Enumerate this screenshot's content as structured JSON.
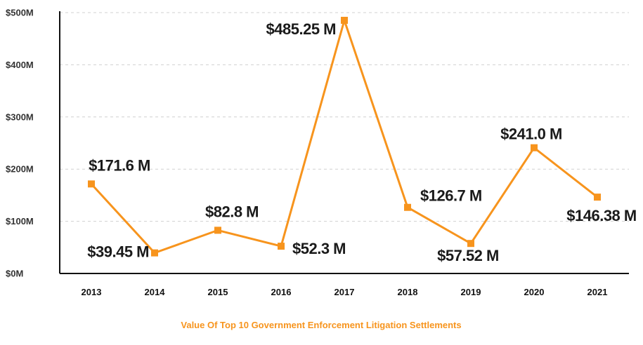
{
  "chart_data": {
    "type": "line",
    "title": "",
    "caption": "Value Of Top 10 Government Enforcement Litigation Settlements",
    "xlabel": "",
    "ylabel": "",
    "categories": [
      "2013",
      "2014",
      "2015",
      "2016",
      "2017",
      "2018",
      "2019",
      "2020",
      "2021"
    ],
    "series": [
      {
        "values": [
          171.6,
          39.45,
          82.8,
          52.3,
          485.25,
          126.7,
          57.52,
          241.0,
          146.38
        ],
        "data_labels": [
          "$171.6 M",
          "$39.45 M",
          "$82.8 M",
          "$52.3 M",
          "$485.25 M",
          "$126.7 M",
          "$57.52 M",
          "$241.0 M",
          "$146.38 M"
        ]
      }
    ],
    "ylim": [
      0,
      500
    ],
    "yticks": [
      0,
      100,
      200,
      300,
      400,
      500
    ],
    "ytick_labels": [
      "$0M",
      "$100M",
      "$200M",
      "$300M",
      "$400M",
      "$500M"
    ],
    "grid": true,
    "legend": "none",
    "colors": {
      "line": "#f7941d",
      "caption": "#f7941d",
      "grid": "#d0d0d0",
      "axis": "#111111"
    }
  }
}
